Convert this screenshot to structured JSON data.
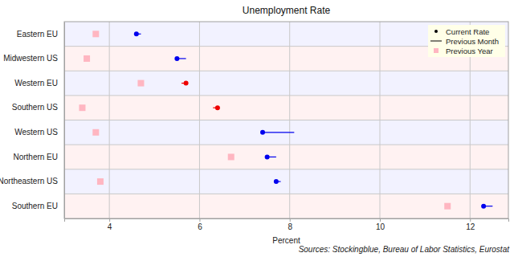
{
  "chart_data": {
    "type": "dot",
    "orientation": "horizontal",
    "title": "Unemployment Rate",
    "x_label": "Percent",
    "annotations": [
      "Sources: Stockingblue, Bureau of Labor Statistics, Eurostat"
    ],
    "categories": [
      "Eastern EU",
      "Midwestern US",
      "Western EU",
      "Southern US",
      "Western US",
      "Northern EU",
      "Northeastern US",
      "Southern EU"
    ],
    "series": [
      {
        "name": "Current Rate",
        "type": "scatter",
        "marker": "circle",
        "colors": [
          "#0000ee",
          "#0000ee",
          "#ee0000",
          "#ee0000",
          "#0000ee",
          "#0000ee",
          "#0000ee",
          "#0000ee"
        ],
        "values": [
          4.6,
          5.5,
          5.7,
          6.4,
          7.4,
          7.5,
          7.7,
          12.3
        ]
      },
      {
        "name": "Previous Month",
        "type": "line",
        "line_style": "solid",
        "colors": [
          "#0000ee",
          "#0000ee",
          "#ee0000",
          "#ee0000",
          "#0000ee",
          "#0000ee",
          "#0000ee",
          "#0000ee"
        ],
        "values": [
          4.7,
          5.7,
          5.6,
          6.3,
          8.1,
          7.7,
          7.8,
          12.5
        ]
      },
      {
        "name": "Previous Year",
        "type": "scatter",
        "marker": "square",
        "color": "#ffb6c1",
        "values": [
          3.7,
          3.5,
          4.7,
          3.4,
          3.7,
          6.7,
          3.8,
          11.5
        ]
      }
    ],
    "xlim": [
      3.0,
      12.85
    ],
    "xticks": [
      4,
      6,
      8,
      10,
      12
    ],
    "grid": true,
    "legend": "upper right"
  }
}
